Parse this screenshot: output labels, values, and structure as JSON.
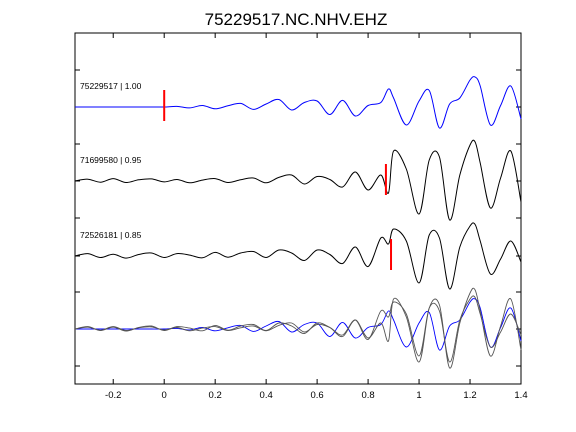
{
  "chart_data": {
    "type": "line",
    "title": "75229517.NC.NHV.EHZ",
    "xlabel": "",
    "ylabel": "",
    "xlim": [
      -0.35,
      1.4
    ],
    "x_ticks": [
      -0.2,
      0,
      0.2,
      0.4,
      0.6,
      0.8,
      1,
      1.2,
      1.4
    ],
    "x_tick_labels": [
      "-0.2",
      "0",
      "0.2",
      "0.4",
      "0.6",
      "0.8",
      "1",
      "1.2",
      "1.4"
    ],
    "grid": false,
    "traces": [
      {
        "label": "75229517 | 1.00",
        "color": "#0000ff",
        "pick_time": 0.0,
        "pick_color": "#ff0000",
        "x": [
          -0.35,
          -0.3,
          -0.25,
          -0.2,
          -0.15,
          -0.1,
          -0.05,
          0,
          0.05,
          0.1,
          0.15,
          0.2,
          0.25,
          0.3,
          0.35,
          0.4,
          0.45,
          0.5,
          0.55,
          0.6,
          0.65,
          0.7,
          0.75,
          0.8,
          0.85,
          0.88,
          0.9,
          0.95,
          1.0,
          1.04,
          1.08,
          1.12,
          1.16,
          1.2,
          1.22,
          1.24,
          1.28,
          1.32,
          1.36,
          1.4
        ],
        "y": [
          0,
          0,
          0,
          0,
          0,
          0,
          0,
          0,
          0.02,
          -0.03,
          0.05,
          -0.06,
          0.04,
          0.12,
          -0.08,
          0.1,
          0.25,
          -0.1,
          0.15,
          0.2,
          -0.25,
          0.22,
          -0.3,
          0.05,
          0.15,
          0.6,
          0.3,
          -0.6,
          0.2,
          0.55,
          -0.7,
          0.1,
          0.3,
          0.9,
          1.0,
          0.7,
          -0.6,
          0.05,
          0.7,
          -0.4
        ]
      },
      {
        "label": "71699580 | 0.95",
        "color": "#000000",
        "pick_time": 0.87,
        "pick_color": "#ff0000",
        "x": [
          -0.35,
          -0.3,
          -0.25,
          -0.2,
          -0.15,
          -0.1,
          -0.05,
          0,
          0.05,
          0.1,
          0.15,
          0.2,
          0.25,
          0.3,
          0.35,
          0.4,
          0.45,
          0.5,
          0.55,
          0.6,
          0.65,
          0.7,
          0.75,
          0.8,
          0.85,
          0.88,
          0.9,
          0.95,
          1.0,
          1.04,
          1.08,
          1.12,
          1.16,
          1.2,
          1.22,
          1.24,
          1.28,
          1.32,
          1.36,
          1.4
        ],
        "y": [
          0,
          0.06,
          -0.04,
          0.08,
          -0.05,
          0.04,
          0.07,
          -0.03,
          0.05,
          -0.06,
          0.03,
          0.08,
          -0.05,
          0.04,
          0.1,
          -0.06,
          0.12,
          0.2,
          -0.1,
          0.15,
          0.05,
          -0.2,
          0.3,
          -0.3,
          0.2,
          -0.4,
          1.0,
          0.4,
          -1.1,
          0.7,
          0.8,
          -1.3,
          0.2,
          1.2,
          1.3,
          0.6,
          -0.9,
          0.1,
          1.0,
          -0.7
        ]
      },
      {
        "label": "72526181 | 0.85",
        "color": "#000000",
        "pick_time": 0.89,
        "pick_color": "#ff0000",
        "x": [
          -0.35,
          -0.3,
          -0.25,
          -0.2,
          -0.15,
          -0.1,
          -0.05,
          0,
          0.05,
          0.1,
          0.15,
          0.2,
          0.25,
          0.3,
          0.35,
          0.4,
          0.45,
          0.5,
          0.55,
          0.6,
          0.65,
          0.7,
          0.75,
          0.8,
          0.85,
          0.88,
          0.9,
          0.95,
          1.0,
          1.04,
          1.08,
          1.12,
          1.16,
          1.2,
          1.22,
          1.24,
          1.28,
          1.32,
          1.36,
          1.4
        ],
        "y": [
          0,
          0.08,
          -0.05,
          0.06,
          -0.07,
          0.05,
          0.1,
          -0.05,
          0.08,
          0.03,
          -0.06,
          0.12,
          -0.04,
          0.1,
          0.15,
          -0.05,
          0.2,
          0.1,
          -0.15,
          0.2,
          0.05,
          -0.25,
          0.3,
          -0.35,
          0.6,
          0.4,
          0.9,
          0.5,
          -0.9,
          0.7,
          0.6,
          -1.1,
          0.3,
          1.0,
          1.05,
          0.5,
          -0.6,
          -0.1,
          0.5,
          -0.2
        ]
      },
      {
        "label": "",
        "color": "#0000ff",
        "overlay": true,
        "x": [
          -0.35,
          -0.3,
          -0.25,
          -0.2,
          -0.15,
          -0.1,
          -0.05,
          0,
          0.05,
          0.1,
          0.15,
          0.2,
          0.25,
          0.3,
          0.35,
          0.4,
          0.45,
          0.5,
          0.55,
          0.6,
          0.65,
          0.7,
          0.75,
          0.8,
          0.85,
          0.88,
          0.9,
          0.95,
          1.0,
          1.04,
          1.08,
          1.12,
          1.16,
          1.2,
          1.22,
          1.24,
          1.28,
          1.32,
          1.36,
          1.4
        ],
        "y": [
          0,
          0,
          0,
          0,
          0,
          0,
          0,
          0,
          0.02,
          -0.03,
          0.05,
          -0.06,
          0.04,
          0.12,
          -0.08,
          0.1,
          0.25,
          -0.1,
          0.15,
          0.2,
          -0.25,
          0.22,
          -0.3,
          0.05,
          0.15,
          0.6,
          0.3,
          -0.6,
          0.2,
          0.55,
          -0.7,
          0.1,
          0.3,
          0.9,
          1.0,
          0.7,
          -0.6,
          0.05,
          0.7,
          -0.4
        ]
      },
      {
        "label": "",
        "color": "#555555",
        "overlay": true,
        "x": [
          -0.35,
          -0.3,
          -0.25,
          -0.2,
          -0.15,
          -0.1,
          -0.05,
          0,
          0.05,
          0.1,
          0.15,
          0.2,
          0.25,
          0.3,
          0.35,
          0.4,
          0.45,
          0.5,
          0.55,
          0.6,
          0.65,
          0.7,
          0.75,
          0.8,
          0.85,
          0.88,
          0.9,
          0.95,
          1.0,
          1.04,
          1.08,
          1.12,
          1.16,
          1.2,
          1.22,
          1.24,
          1.28,
          1.32,
          1.36,
          1.4
        ],
        "y": [
          0,
          0.06,
          -0.04,
          0.08,
          -0.05,
          0.04,
          0.07,
          -0.03,
          0.05,
          -0.06,
          0.03,
          0.08,
          -0.05,
          0.04,
          0.1,
          -0.06,
          0.12,
          0.2,
          -0.1,
          0.15,
          0.05,
          -0.2,
          0.3,
          -0.3,
          0.2,
          -0.4,
          1.0,
          0.4,
          -1.1,
          0.7,
          0.8,
          -1.3,
          0.2,
          1.2,
          1.3,
          0.6,
          -0.9,
          0.1,
          1.0,
          -0.7
        ]
      },
      {
        "label": "",
        "color": "#555555",
        "overlay": true,
        "x": [
          -0.35,
          -0.3,
          -0.25,
          -0.2,
          -0.15,
          -0.1,
          -0.05,
          0,
          0.05,
          0.1,
          0.15,
          0.2,
          0.25,
          0.3,
          0.35,
          0.4,
          0.45,
          0.5,
          0.55,
          0.6,
          0.65,
          0.7,
          0.75,
          0.8,
          0.85,
          0.88,
          0.9,
          0.95,
          1.0,
          1.04,
          1.08,
          1.12,
          1.16,
          1.2,
          1.22,
          1.24,
          1.28,
          1.32,
          1.36,
          1.4
        ],
        "y": [
          0,
          0.08,
          -0.05,
          0.06,
          -0.07,
          0.05,
          0.1,
          -0.05,
          0.08,
          0.03,
          -0.06,
          0.12,
          -0.04,
          0.1,
          0.15,
          -0.05,
          0.2,
          0.1,
          -0.15,
          0.2,
          0.05,
          -0.25,
          0.3,
          -0.35,
          0.6,
          0.4,
          0.9,
          0.5,
          -0.9,
          0.7,
          0.6,
          -1.1,
          0.3,
          1.0,
          1.05,
          0.5,
          -0.6,
          -0.1,
          0.5,
          -0.2
        ]
      }
    ]
  }
}
